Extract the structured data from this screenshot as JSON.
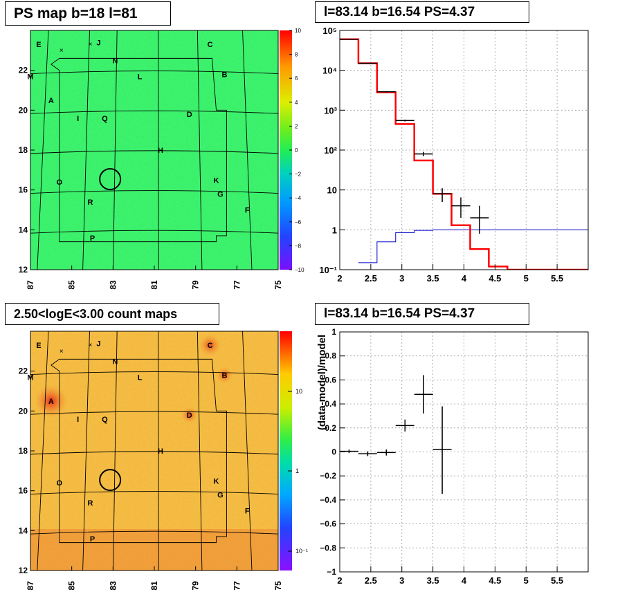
{
  "panels": {
    "top_left": {
      "title": "PS map b=18 l=81"
    },
    "top_right": {
      "title": "l=83.14 b=16.54 PS=4.37"
    },
    "bottom_left": {
      "title": "2.50<logE<3.00 count maps"
    },
    "bottom_right": {
      "title": "l=83.14 b=16.54 PS=4.37"
    }
  },
  "colors": {
    "ps_map_bg": "#33f060",
    "count_map_bg": "#f2b83a",
    "model_red": "#ff0000",
    "blue_line": "#0000cc",
    "data_black": "#000000"
  },
  "chart_data": [
    {
      "type": "heatmap",
      "name": "ps-map",
      "x_ticks": [
        "87",
        "85",
        "83",
        "81",
        "79",
        "77",
        "75"
      ],
      "y_ticks": [
        "12",
        "14",
        "16",
        "18",
        "20",
        "22"
      ],
      "xlim": [
        87,
        75
      ],
      "ylim": [
        12,
        24
      ],
      "colorbar": {
        "min": -10,
        "max": 10,
        "ticks": [
          "10",
          "8",
          "6",
          "4",
          "2",
          "0",
          "−2",
          "−4",
          "−6",
          "−8",
          "−10"
        ]
      },
      "source_labels": [
        {
          "label": "E",
          "l": 86.6,
          "b": 23.3
        },
        {
          "label": "J",
          "l": 83.7,
          "b": 23.4
        },
        {
          "label": "C",
          "l": 78.3,
          "b": 23.3
        },
        {
          "label": "N",
          "l": 82.9,
          "b": 22.5
        },
        {
          "label": "M",
          "l": 87.0,
          "b": 21.7
        },
        {
          "label": "L",
          "l": 81.7,
          "b": 21.7
        },
        {
          "label": "B",
          "l": 77.6,
          "b": 21.8
        },
        {
          "label": "A",
          "l": 86.0,
          "b": 20.5
        },
        {
          "label": "I",
          "l": 84.7,
          "b": 19.6
        },
        {
          "label": "Q",
          "l": 83.4,
          "b": 19.6
        },
        {
          "label": "D",
          "l": 79.3,
          "b": 19.8
        },
        {
          "label": "H",
          "l": 80.7,
          "b": 18.0
        },
        {
          "label": "O",
          "l": 85.6,
          "b": 16.4
        },
        {
          "label": "K",
          "l": 78.0,
          "b": 16.5
        },
        {
          "label": "G",
          "l": 77.8,
          "b": 15.8
        },
        {
          "label": "R",
          "l": 84.1,
          "b": 15.4
        },
        {
          "label": "F",
          "l": 76.5,
          "b": 15.0
        },
        {
          "label": "P",
          "l": 84.0,
          "b": 13.6
        }
      ],
      "crosses": [
        {
          "l": 85.5,
          "b": 23.0
        },
        {
          "l": 84.1,
          "b": 23.3
        }
      ],
      "circle": {
        "l": 83.14,
        "b": 16.54
      }
    },
    {
      "type": "line",
      "name": "spectrum",
      "y_log_scale": true,
      "xlim": [
        2,
        6
      ],
      "ylim": [
        0.1,
        100000
      ],
      "x_ticks": [
        "2",
        "2.5",
        "3",
        "3.5",
        "4",
        "4.5",
        "5",
        "5.5"
      ],
      "y_ticks": [
        "10⁻¹",
        "1",
        "10",
        "10²",
        "10³",
        "10⁴",
        "10⁵"
      ],
      "series": [
        {
          "role": "model-histogram",
          "edges": [
            2.0,
            2.3,
            2.6,
            2.9,
            3.2,
            3.5,
            3.8,
            4.1,
            4.4,
            4.7,
            6.0
          ],
          "values": [
            60000,
            15000,
            2800,
            450,
            55,
            8,
            1.3,
            0.33,
            0.12,
            0.1
          ]
        },
        {
          "role": "exposure-step",
          "edges": [
            2.3,
            2.6,
            2.9,
            3.2,
            3.5,
            6.0
          ],
          "values": [
            0.15,
            0.5,
            0.85,
            0.97,
            1.0
          ]
        },
        {
          "role": "data-points",
          "points": [
            {
              "x": 2.15,
              "xerr": 0.15,
              "y": 60000,
              "ylo": 59500,
              "yhi": 60500
            },
            {
              "x": 2.45,
              "xerr": 0.15,
              "y": 15000,
              "ylo": 14800,
              "yhi": 15200
            },
            {
              "x": 2.75,
              "xerr": 0.15,
              "y": 2900,
              "ylo": 2800,
              "yhi": 3000
            },
            {
              "x": 3.05,
              "xerr": 0.15,
              "y": 550,
              "ylo": 520,
              "yhi": 580
            },
            {
              "x": 3.35,
              "xerr": 0.15,
              "y": 80,
              "ylo": 70,
              "yhi": 90
            },
            {
              "x": 3.65,
              "xerr": 0.15,
              "y": 8,
              "ylo": 5,
              "yhi": 11
            },
            {
              "x": 3.95,
              "xerr": 0.15,
              "y": 4,
              "ylo": 2,
              "yhi": 6.5
            },
            {
              "x": 4.25,
              "xerr": 0.15,
              "y": 2,
              "ylo": 0.8,
              "yhi": 4
            }
          ]
        }
      ]
    },
    {
      "type": "heatmap",
      "name": "count-map",
      "x_ticks": [
        "87",
        "85",
        "83",
        "81",
        "79",
        "77",
        "75"
      ],
      "y_ticks": [
        "12",
        "14",
        "16",
        "18",
        "20",
        "22"
      ],
      "xlim": [
        87,
        75
      ],
      "ylim": [
        12,
        24
      ],
      "colorbar": {
        "log_scale": true,
        "ticks": [
          "10",
          "1",
          "10⁻¹"
        ]
      }
    },
    {
      "type": "scatter",
      "name": "residuals",
      "xlim": [
        2,
        6
      ],
      "ylim": [
        -1,
        1
      ],
      "ylabel": "(data-model)/model",
      "x_ticks": [
        "2",
        "2.5",
        "3",
        "3.5",
        "4",
        "4.5",
        "5",
        "5.5"
      ],
      "y_ticks": [
        "1",
        "0.8",
        "0.6",
        "0.4",
        "0.2",
        "0",
        "−0.2",
        "−0.4",
        "−0.6",
        "−0.8",
        "−1"
      ],
      "points": [
        {
          "x": 2.15,
          "xerr": 0.15,
          "y": 0.005,
          "ylo": -0.01,
          "yhi": 0.02
        },
        {
          "x": 2.45,
          "xerr": 0.15,
          "y": -0.015,
          "ylo": -0.035,
          "yhi": 0.005
        },
        {
          "x": 2.75,
          "xerr": 0.15,
          "y": -0.005,
          "ylo": -0.03,
          "yhi": 0.02
        },
        {
          "x": 3.05,
          "xerr": 0.15,
          "y": 0.22,
          "ylo": 0.17,
          "yhi": 0.27
        },
        {
          "x": 3.35,
          "xerr": 0.15,
          "y": 0.48,
          "ylo": 0.32,
          "yhi": 0.64
        },
        {
          "x": 3.65,
          "xerr": 0.15,
          "y": 0.02,
          "ylo": -0.35,
          "yhi": 0.38
        }
      ]
    }
  ]
}
